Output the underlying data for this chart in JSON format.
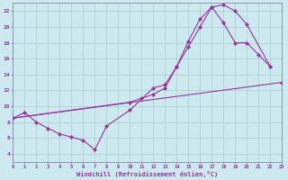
{
  "background_color": "#cce9f0",
  "grid_color": "#aacccc",
  "line_color": "#993399",
  "x_min": 0,
  "x_max": 23,
  "y_min": 3,
  "y_max": 23,
  "xlabel": "Windchill (Refroidissement éolien,°C)",
  "line1_x": [
    0,
    1,
    2,
    3,
    4,
    5,
    6,
    7,
    8,
    10,
    12,
    13,
    14,
    15,
    16,
    17,
    18,
    19,
    20,
    22
  ],
  "line1_y": [
    8.5,
    9.2,
    8.0,
    7.2,
    6.5,
    6.1,
    5.7,
    4.5,
    7.5,
    9.5,
    12.3,
    12.7,
    15.0,
    18.2,
    21.0,
    22.5,
    22.8,
    22.0,
    20.3,
    15.0
  ],
  "line2_x": [
    0,
    23
  ],
  "line2_y": [
    8.5,
    13.0
  ],
  "line3_x": [
    0,
    10,
    11,
    12,
    13,
    14,
    15,
    16,
    17,
    18,
    19,
    20,
    21,
    22
  ],
  "line3_y": [
    8.5,
    10.5,
    11.0,
    11.5,
    12.3,
    15.0,
    17.5,
    20.0,
    22.5,
    20.5,
    18.0,
    18.0,
    16.5,
    15.0
  ]
}
